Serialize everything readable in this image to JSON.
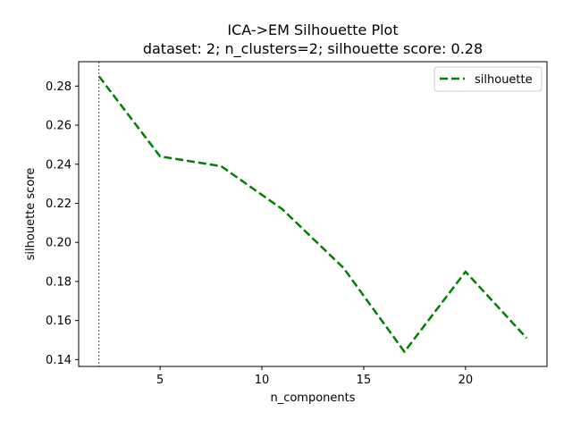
{
  "chart_data": {
    "type": "line",
    "title": "ICA->EM Silhouette Plot",
    "subtitle": "dataset: 2; n_clusters=2; silhouette score: 0.28",
    "xlabel": "n_components",
    "ylabel": "silhouette score",
    "xlim": [
      1.0,
      24.0
    ],
    "ylim": [
      0.1365,
      0.2925
    ],
    "xticks": [
      5,
      10,
      15,
      20
    ],
    "xtick_labels": [
      "5",
      "10",
      "15",
      "20"
    ],
    "yticks": [
      0.14,
      0.16,
      0.18,
      0.2,
      0.22,
      0.24,
      0.26,
      0.28
    ],
    "ytick_labels": [
      "0.14",
      "0.16",
      "0.18",
      "0.20",
      "0.22",
      "0.24",
      "0.26",
      "0.28"
    ],
    "grid": false,
    "legend_position": "top-right",
    "vline_x": 2,
    "series": [
      {
        "name": "silhouette",
        "color": "#008000",
        "style": "dashed",
        "x": [
          2,
          5,
          8,
          11,
          14,
          17,
          20,
          23
        ],
        "y": [
          0.285,
          0.244,
          0.239,
          0.217,
          0.187,
          0.144,
          0.185,
          0.151
        ]
      }
    ]
  }
}
